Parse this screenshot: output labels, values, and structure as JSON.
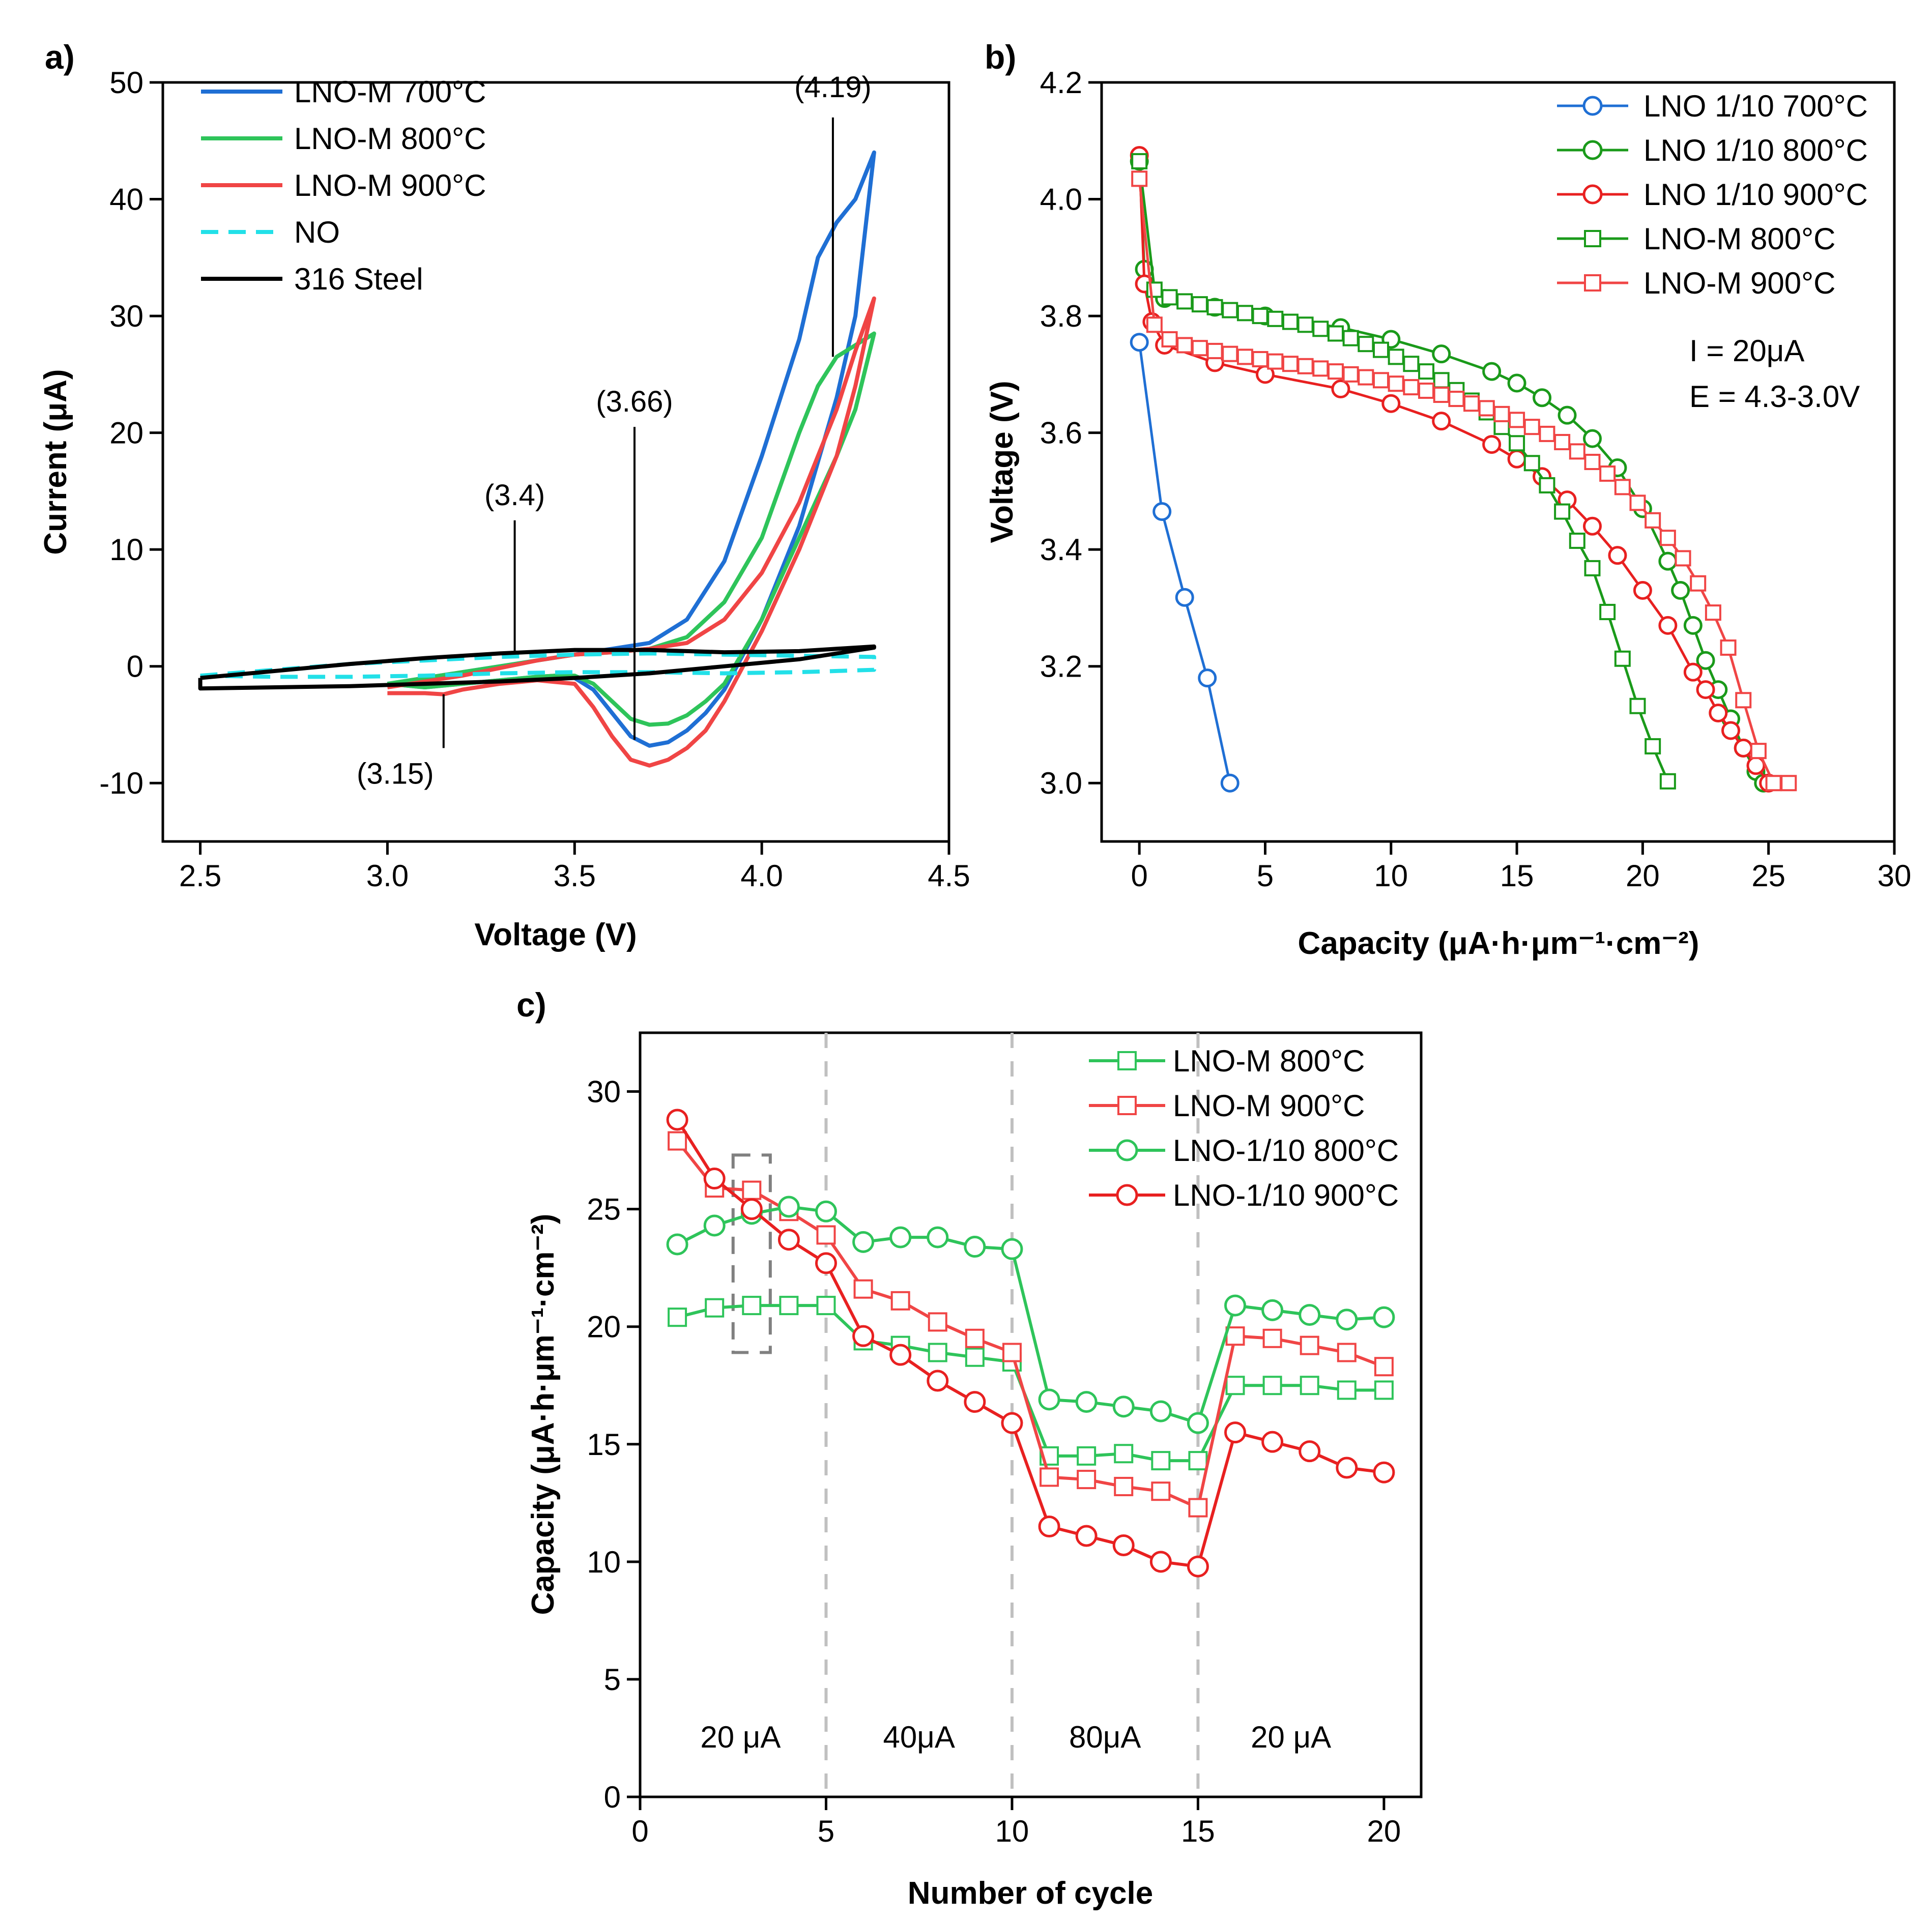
{
  "chart_data": [
    {
      "panel": "a)",
      "type": "line",
      "xlabel": "Voltage (V)",
      "ylabel": "Current (μA)",
      "xlim": [
        2.4,
        4.5
      ],
      "ylim": [
        -15,
        50
      ],
      "xticks": [
        "2.5",
        "3.0",
        "3.5",
        "4.0",
        "4.5"
      ],
      "yticks": [
        "-10",
        "0",
        "10",
        "20",
        "30",
        "40",
        "50"
      ],
      "xtick_values": [
        2.5,
        3.0,
        3.5,
        4.0,
        4.5
      ],
      "ytick_values": [
        -10,
        0,
        10,
        20,
        30,
        40,
        50
      ],
      "series": [
        {
          "name": "LNO-M 700°C",
          "color": "#1f6fd4",
          "dash": false,
          "x": [
            3.0,
            3.2,
            3.4,
            3.5,
            3.6,
            3.7,
            3.8,
            3.9,
            4.0,
            4.1,
            4.15,
            4.2,
            4.25,
            4.3,
            4.25,
            4.2,
            4.1,
            4.0,
            3.9,
            3.85,
            3.8,
            3.75,
            3.7,
            3.65,
            3.6,
            3.55,
            3.5,
            3.45,
            3.4,
            3.3,
            3.2,
            3.1,
            3.0
          ],
          "y": [
            -1.5,
            -0.5,
            0.5,
            1.0,
            1.5,
            2.0,
            4.0,
            9.0,
            18.0,
            28.0,
            35.0,
            38.0,
            40.0,
            44.0,
            30.0,
            23.0,
            12.0,
            4.0,
            -2.0,
            -4.0,
            -5.5,
            -6.5,
            -6.8,
            -6.0,
            -4.0,
            -2.0,
            -1.0,
            -0.8,
            -0.9,
            -1.2,
            -1.5,
            -1.8,
            -1.5
          ]
        },
        {
          "name": "LNO-M 800°C",
          "color": "#2ec45a",
          "dash": false,
          "x": [
            3.0,
            3.2,
            3.4,
            3.5,
            3.6,
            3.7,
            3.8,
            3.9,
            4.0,
            4.1,
            4.15,
            4.2,
            4.25,
            4.3,
            4.25,
            4.2,
            4.1,
            4.0,
            3.9,
            3.85,
            3.8,
            3.75,
            3.7,
            3.65,
            3.6,
            3.55,
            3.5,
            3.45,
            3.4,
            3.3,
            3.2,
            3.1,
            3.0
          ],
          "y": [
            -1.5,
            -0.5,
            0.5,
            1.0,
            1.2,
            1.5,
            2.5,
            5.5,
            11.0,
            20.0,
            24.0,
            26.5,
            27.5,
            28.5,
            22.0,
            18.0,
            11.0,
            4.0,
            -1.5,
            -3.0,
            -4.2,
            -4.9,
            -5.0,
            -4.5,
            -3.0,
            -1.5,
            -0.8,
            -0.8,
            -0.9,
            -1.2,
            -1.5,
            -1.8,
            -1.5
          ]
        },
        {
          "name": "LNO-M 900°C",
          "color": "#f04545",
          "dash": false,
          "x": [
            3.0,
            3.2,
            3.4,
            3.5,
            3.6,
            3.7,
            3.8,
            3.9,
            4.0,
            4.1,
            4.2,
            4.25,
            4.3,
            4.25,
            4.2,
            4.1,
            4.0,
            3.9,
            3.85,
            3.8,
            3.75,
            3.7,
            3.65,
            3.6,
            3.55,
            3.5,
            3.4,
            3.3,
            3.2,
            3.15,
            3.1,
            3.0
          ],
          "y": [
            -1.8,
            -0.8,
            0.5,
            1.0,
            1.2,
            1.5,
            2.0,
            4.0,
            8.0,
            14.0,
            22.0,
            27.0,
            31.5,
            24.0,
            18.0,
            10.0,
            3.0,
            -3.0,
            -5.5,
            -7.0,
            -8.0,
            -8.5,
            -8.0,
            -6.0,
            -3.5,
            -1.5,
            -1.2,
            -1.5,
            -2.0,
            -2.4,
            -2.3,
            -2.3
          ]
        },
        {
          "name": "NO",
          "color": "#22e0e8",
          "dash": true,
          "x": [
            2.5,
            2.7,
            2.9,
            3.1,
            3.3,
            3.5,
            3.7,
            3.9,
            4.1,
            4.3,
            4.3,
            4.1,
            3.9,
            3.7,
            3.5,
            3.3,
            3.1,
            2.9,
            2.7,
            2.5
          ],
          "y": [
            -0.8,
            -0.3,
            0.2,
            0.5,
            0.8,
            1.0,
            1.1,
            1.0,
            0.9,
            0.8,
            -0.3,
            -0.5,
            -0.6,
            -0.5,
            -0.5,
            -0.6,
            -0.8,
            -0.9,
            -0.9,
            -0.8
          ]
        },
        {
          "name": "316 Steel",
          "color": "#000000",
          "dash": false,
          "x": [
            2.5,
            2.7,
            2.9,
            3.1,
            3.3,
            3.5,
            3.7,
            3.9,
            4.1,
            4.3,
            4.3,
            4.1,
            3.9,
            3.7,
            3.5,
            3.3,
            3.1,
            2.9,
            2.7,
            2.5,
            2.5
          ],
          "y": [
            -1.0,
            -0.4,
            0.2,
            0.7,
            1.1,
            1.4,
            1.4,
            1.2,
            1.3,
            1.7,
            1.6,
            0.6,
            0.0,
            -0.6,
            -1.0,
            -1.3,
            -1.5,
            -1.7,
            -1.8,
            -1.9,
            -1.0
          ]
        }
      ],
      "annotations": [
        {
          "label": "(4.19)",
          "x": 4.19,
          "y_from": 26.5,
          "y_to": 47.0
        },
        {
          "label": "(3.66)",
          "x": 3.66,
          "y_from": -6.3,
          "y_to": 20.5
        },
        {
          "label": "(3.4)",
          "x": 3.34,
          "y_from": 1.2,
          "y_to": 12.5
        },
        {
          "label": "(3.15)",
          "x": 3.15,
          "y_from": -2.4,
          "y_to": -7.0
        }
      ]
    },
    {
      "panel": "b)",
      "type": "line",
      "xlabel": "Capacity (μA·h·μm⁻¹·cm⁻²)",
      "ylabel": "Voltage (V)",
      "xlim": [
        -1.5,
        30
      ],
      "ylim": [
        2.9,
        4.2
      ],
      "xticks": [
        "0",
        "5",
        "10",
        "15",
        "20",
        "25",
        "30"
      ],
      "yticks": [
        "3.0",
        "3.2",
        "3.4",
        "3.6",
        "3.8",
        "4.0",
        "4.2"
      ],
      "xtick_values": [
        0,
        5,
        10,
        15,
        20,
        25,
        30
      ],
      "ytick_values": [
        3.0,
        3.2,
        3.4,
        3.6,
        3.8,
        4.0,
        4.2
      ],
      "series": [
        {
          "name": "LNO 1/10 700°C",
          "color": "#1f6fd4",
          "marker": "circle",
          "x": [
            0.0,
            0.9,
            1.8,
            2.7,
            3.6
          ],
          "y": [
            3.755,
            3.465,
            3.318,
            3.18,
            3.0
          ]
        },
        {
          "name": "LNO 1/10 800°C",
          "color": "#1a9a1a",
          "marker": "circle",
          "x": [
            0.0,
            0.2,
            1,
            3,
            5,
            8,
            10,
            12,
            14,
            15,
            16,
            17,
            18,
            19,
            20,
            21,
            21.5,
            22,
            22.5,
            23,
            23.5,
            24,
            24.5,
            24.8
          ],
          "y": [
            4.065,
            3.88,
            3.83,
            3.815,
            3.8,
            3.78,
            3.76,
            3.735,
            3.705,
            3.685,
            3.66,
            3.63,
            3.59,
            3.54,
            3.47,
            3.38,
            3.33,
            3.27,
            3.21,
            3.16,
            3.11,
            3.06,
            3.02,
            3.0
          ]
        },
        {
          "name": "LNO 1/10 900°C",
          "color": "#e82020",
          "marker": "circle",
          "x": [
            0.0,
            0.2,
            0.5,
            1,
            3,
            5,
            8,
            10,
            12,
            14,
            15,
            16,
            17,
            18,
            19,
            20,
            21,
            22,
            22.5,
            23,
            23.5,
            24,
            24.5,
            25
          ],
          "y": [
            4.075,
            3.855,
            3.79,
            3.75,
            3.72,
            3.7,
            3.675,
            3.65,
            3.62,
            3.58,
            3.555,
            3.525,
            3.485,
            3.44,
            3.39,
            3.33,
            3.27,
            3.19,
            3.16,
            3.12,
            3.09,
            3.06,
            3.03,
            3.0
          ]
        },
        {
          "name": "LNO-M 800°C",
          "color": "#1a9a1a",
          "marker": "square",
          "x": [
            0.0,
            0.6,
            1.2,
            1.8,
            2.4,
            3.0,
            3.6,
            4.2,
            4.8,
            5.4,
            6.0,
            6.6,
            7.2,
            7.8,
            8.4,
            9.0,
            9.6,
            10.2,
            10.8,
            11.4,
            12.0,
            12.6,
            13.2,
            13.8,
            14.4,
            15.0,
            15.6,
            16.2,
            16.8,
            17.4,
            18.0,
            18.6,
            19.2,
            19.8,
            20.4,
            21.0
          ],
          "y": [
            4.065,
            3.845,
            3.832,
            3.825,
            3.82,
            3.815,
            3.81,
            3.805,
            3.8,
            3.795,
            3.79,
            3.785,
            3.778,
            3.77,
            3.762,
            3.752,
            3.742,
            3.73,
            3.718,
            3.705,
            3.69,
            3.673,
            3.655,
            3.635,
            3.61,
            3.582,
            3.548,
            3.51,
            3.465,
            3.415,
            3.368,
            3.293,
            3.213,
            3.132,
            3.063,
            3.003
          ]
        },
        {
          "name": "LNO-M 900°C",
          "color": "#f04545",
          "marker": "square",
          "x": [
            0.0,
            0.6,
            1.2,
            1.8,
            2.4,
            3.0,
            3.6,
            4.2,
            4.8,
            5.4,
            6.0,
            6.6,
            7.2,
            7.8,
            8.4,
            9.0,
            9.6,
            10.2,
            10.8,
            11.4,
            12.0,
            12.6,
            13.2,
            13.8,
            14.4,
            15.0,
            15.6,
            16.2,
            16.8,
            17.4,
            18.0,
            18.6,
            19.2,
            19.8,
            20.4,
            21.0,
            21.6,
            22.2,
            22.8,
            23.4,
            24.0,
            24.6,
            25.2,
            25.8
          ],
          "y": [
            4.035,
            3.785,
            3.76,
            3.75,
            3.745,
            3.74,
            3.735,
            3.73,
            3.726,
            3.722,
            3.718,
            3.714,
            3.71,
            3.705,
            3.7,
            3.695,
            3.69,
            3.684,
            3.678,
            3.672,
            3.665,
            3.658,
            3.65,
            3.642,
            3.632,
            3.622,
            3.61,
            3.598,
            3.584,
            3.568,
            3.55,
            3.53,
            3.507,
            3.48,
            3.45,
            3.42,
            3.385,
            3.342,
            3.292,
            3.232,
            3.142,
            3.055,
            3.0,
            3.0
          ]
        }
      ],
      "annotations": [
        "I = 20μA",
        "E = 4.3-3.0V"
      ]
    },
    {
      "panel": "c)",
      "type": "line",
      "xlabel": "Number of cycle",
      "ylabel": "Capacity (μA·h·μm⁻¹·cm⁻²)",
      "xlim": [
        0,
        21
      ],
      "ylim": [
        0,
        32.5
      ],
      "xticks": [
        "0",
        "5",
        "10",
        "15",
        "20"
      ],
      "yticks": [
        "0",
        "5",
        "10",
        "15",
        "20",
        "25",
        "30"
      ],
      "xtick_values": [
        0,
        5,
        10,
        15,
        20
      ],
      "ytick_values": [
        0,
        5,
        10,
        15,
        20,
        25,
        30
      ],
      "x": [
        1,
        2,
        3,
        4,
        5,
        6,
        7,
        8,
        9,
        10,
        11,
        12,
        13,
        14,
        15,
        16,
        17,
        18,
        19,
        20
      ],
      "series": [
        {
          "name": "LNO-M 800°C",
          "color": "#2ec45a",
          "marker": "square",
          "values": [
            20.4,
            20.8,
            20.9,
            20.9,
            20.9,
            19.4,
            19.2,
            18.9,
            18.7,
            18.5,
            14.5,
            14.5,
            14.6,
            14.3,
            14.3,
            17.5,
            17.5,
            17.5,
            17.3,
            17.3
          ]
        },
        {
          "name": "LNO-M 900°C",
          "color": "#f04545",
          "marker": "square",
          "values": [
            27.9,
            25.9,
            25.8,
            24.9,
            23.9,
            21.6,
            21.1,
            20.2,
            19.5,
            18.9,
            13.6,
            13.5,
            13.2,
            13.0,
            12.3,
            19.6,
            19.5,
            19.2,
            18.9,
            18.3
          ]
        },
        {
          "name": "LNO-1/10 800°C",
          "color": "#2ec45a",
          "marker": "circle",
          "values": [
            23.5,
            24.3,
            24.8,
            25.1,
            24.9,
            23.6,
            23.8,
            23.8,
            23.4,
            23.3,
            16.9,
            16.8,
            16.6,
            16.4,
            15.9,
            20.9,
            20.7,
            20.5,
            20.3,
            20.4
          ]
        },
        {
          "name": "LNO-1/10 900°C",
          "color": "#e82020",
          "marker": "circle",
          "values": [
            28.8,
            26.3,
            25.0,
            23.7,
            22.7,
            19.6,
            18.8,
            17.7,
            16.8,
            15.9,
            11.5,
            11.1,
            10.7,
            10.0,
            9.8,
            15.5,
            15.1,
            14.7,
            14.0,
            13.8
          ]
        }
      ],
      "rate_labels": [
        "20 μA",
        "40μA",
        "80μA",
        "20 μA"
      ],
      "rate_label_x": [
        2.7,
        7.5,
        12.5,
        17.5
      ],
      "dividers": [
        5,
        10,
        15
      ],
      "highlight_box": {
        "x0": 2.5,
        "x1": 3.5,
        "y0": 18.9,
        "y1": 27.3
      }
    }
  ]
}
